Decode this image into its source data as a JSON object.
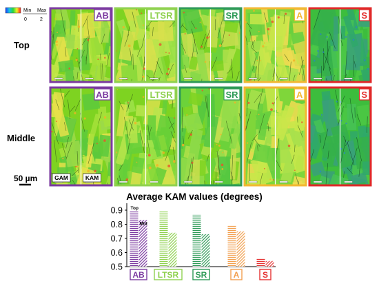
{
  "colorbar": {
    "min_label": "Min",
    "max_label": "Max",
    "min_value": "0",
    "max_value": "2",
    "colors": [
      "#1a3aff",
      "#17c6e6",
      "#26d83c",
      "#f2f226",
      "#ff1e1e"
    ]
  },
  "rows": [
    {
      "label": "Top"
    },
    {
      "label": "Middle"
    }
  ],
  "conditions": [
    {
      "label": "AB",
      "color": "#7b3aa0",
      "frame": "#7b3aa0"
    },
    {
      "label": "LTSR",
      "color": "#8fd14f",
      "frame": "#8fd14f"
    },
    {
      "label": "SR",
      "color": "#2e9a57",
      "frame": "#2e9a57"
    },
    {
      "label": "A",
      "color": "#f2b833",
      "frame": "#f2b833"
    },
    {
      "label": "S",
      "color": "#e53232",
      "frame": "#e02828"
    }
  ],
  "map_labels": {
    "gam": "GAM",
    "kam": "KAM"
  },
  "scale_bar": {
    "label": "50 µm"
  },
  "chart_data": {
    "type": "bar",
    "title": "Average KAM values (degrees)",
    "categories": [
      "AB",
      "LTSR",
      "SR",
      "A",
      "S"
    ],
    "category_colors": [
      "#7b3aa0",
      "#8fd14f",
      "#2e9a57",
      "#f2a04f",
      "#e53232"
    ],
    "series": [
      {
        "name": "Top",
        "values": [
          0.89,
          0.89,
          0.87,
          0.79,
          0.56
        ]
      },
      {
        "name": "Mid",
        "values": [
          0.83,
          0.74,
          0.73,
          0.75,
          0.54
        ]
      }
    ],
    "ylim": [
      0.5,
      0.9
    ],
    "yticks": [
      "0.5",
      "0.6",
      "0.7",
      "0.8",
      "0.9"
    ],
    "ytick_values": [
      0.5,
      0.6,
      0.7,
      0.8,
      0.9
    ],
    "xlabel": "",
    "ylabel": ""
  }
}
